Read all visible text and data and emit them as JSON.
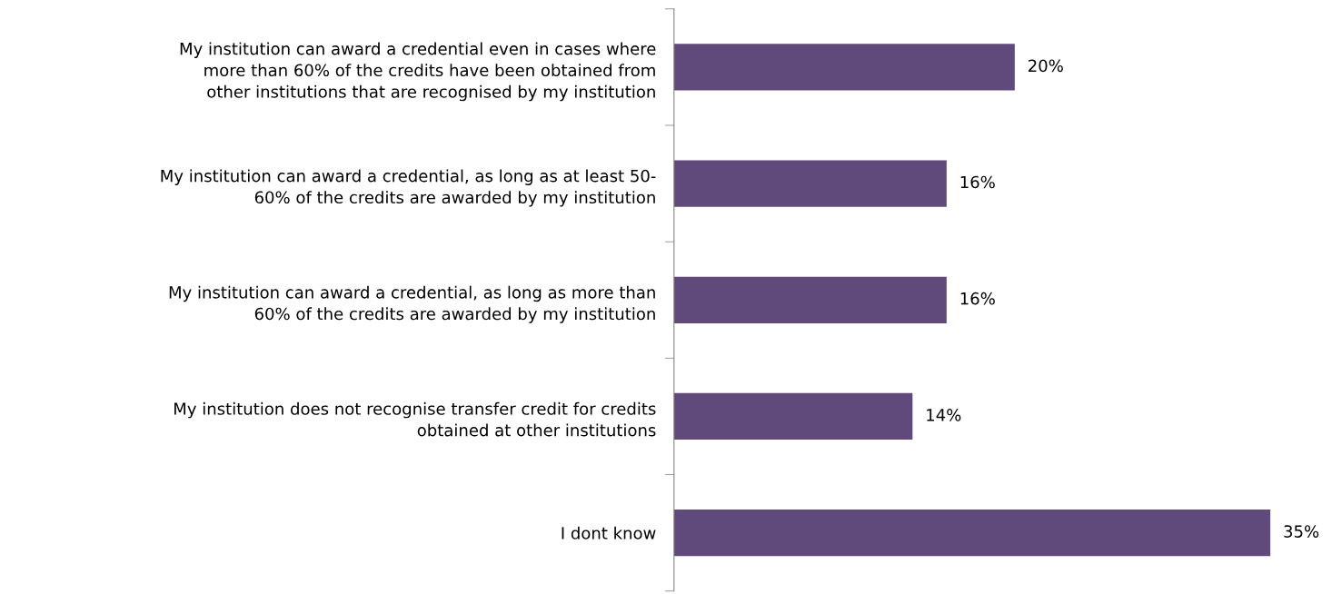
{
  "chart_data": {
    "type": "bar",
    "orientation": "horizontal",
    "color": "#604a7b",
    "categories": [
      "My institution can award a credential even in cases where\nmore than 60% of the credits have been obtained from\nother institutions that are recognised by my institution",
      "My institution can award a credential, as long as at least 50-\n60% of the credits are awarded by my institution",
      "My institution can award a credential, as long as more than\n60% of the credits are awarded by my institution",
      "My institution does not recognise transfer credit for credits\nobtained at other institutions",
      "I dont know"
    ],
    "values": [
      20,
      16,
      16,
      14,
      35
    ],
    "value_labels": [
      "20%",
      "16%",
      "16%",
      "14%",
      "35%"
    ],
    "grid": false,
    "legend": false
  }
}
